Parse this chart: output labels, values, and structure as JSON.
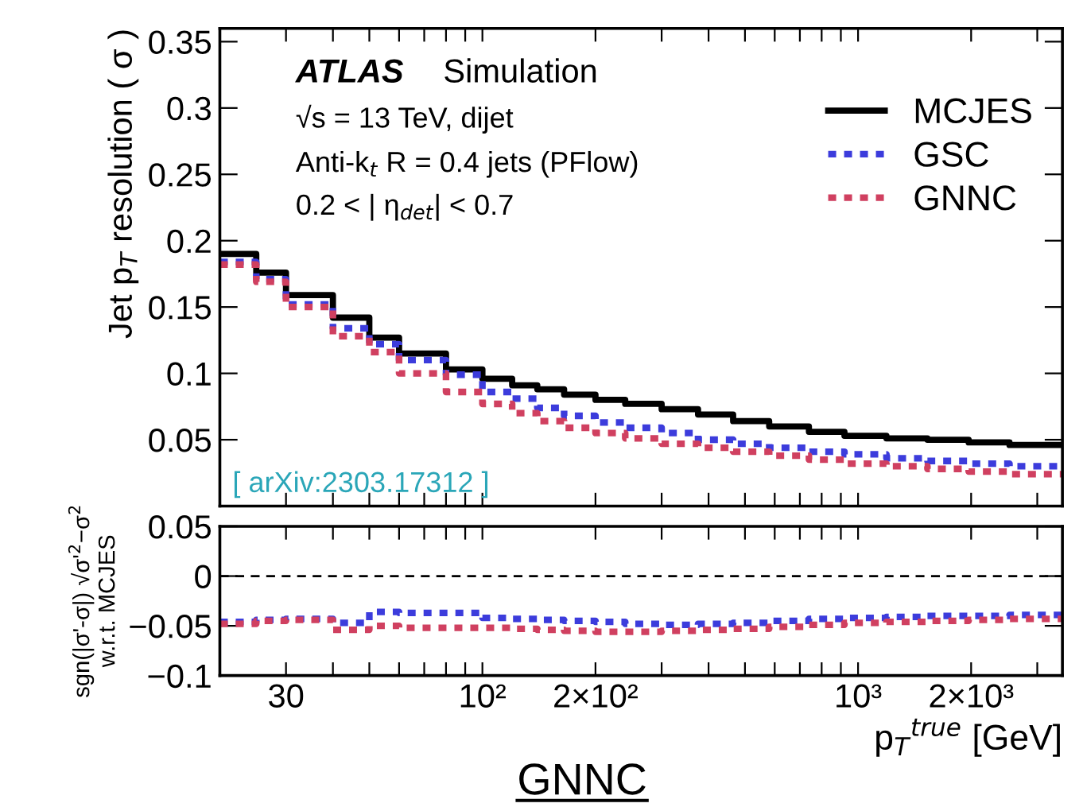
{
  "chart_data": [
    {
      "type": "step",
      "ylabel": "Jet p$_{T}$ resolution ( σ )",
      "x": [
        20,
        25,
        30,
        40,
        50,
        60,
        80,
        100,
        120,
        140,
        165,
        200,
        240,
        300,
        375,
        465,
        580,
        740,
        920,
        1190,
        1530,
        1970,
        2530,
        3500
      ],
      "series": [
        {
          "name": "MCJES",
          "color": "#000000",
          "line_style": "solid",
          "values": [
            0.19,
            0.176,
            0.159,
            0.142,
            0.127,
            0.115,
            0.103,
            0.096,
            0.091,
            0.088,
            0.084,
            0.08,
            0.077,
            0.073,
            0.069,
            0.064,
            0.06,
            0.056,
            0.053,
            0.051,
            0.05,
            0.048,
            0.046,
            0.046
          ]
        },
        {
          "name": "GSC",
          "color": "#3c3cdc",
          "line_style": "dotted",
          "values": [
            0.184,
            0.171,
            0.152,
            0.134,
            0.122,
            0.11,
            0.099,
            0.086,
            0.081,
            0.074,
            0.068,
            0.063,
            0.059,
            0.055,
            0.05,
            0.047,
            0.044,
            0.041,
            0.039,
            0.036,
            0.034,
            0.032,
            0.03,
            0.03
          ]
        },
        {
          "name": "GNNC",
          "color": "#d04060",
          "line_style": "dotted",
          "values": [
            0.182,
            0.169,
            0.15,
            0.128,
            0.116,
            0.1,
            0.086,
            0.077,
            0.07,
            0.064,
            0.059,
            0.055,
            0.051,
            0.047,
            0.044,
            0.041,
            0.038,
            0.035,
            0.032,
            0.03,
            0.028,
            0.026,
            0.024,
            0.024
          ]
        }
      ],
      "log": "x",
      "xlim": [
        20,
        3500
      ],
      "ylim": [
        0,
        0.36
      ],
      "xticks": [
        {
          "value": 20,
          "label": null
        },
        {
          "value": 30,
          "label": null
        },
        {
          "value": 40,
          "label": null
        },
        {
          "value": 50,
          "label": null
        },
        {
          "value": 60,
          "label": null
        },
        {
          "value": 70,
          "label": null
        },
        {
          "value": 80,
          "label": null
        },
        {
          "value": 90,
          "label": null
        },
        {
          "value": 100,
          "label": null
        },
        {
          "value": 200,
          "label": null
        },
        {
          "value": 300,
          "label": null
        },
        {
          "value": 400,
          "label": null
        },
        {
          "value": 500,
          "label": null
        },
        {
          "value": 600,
          "label": null
        },
        {
          "value": 700,
          "label": null
        },
        {
          "value": 800,
          "label": null
        },
        {
          "value": 900,
          "label": null
        },
        {
          "value": 1000,
          "label": null
        },
        {
          "value": 2000,
          "label": null
        },
        {
          "value": 3000,
          "label": null
        }
      ],
      "yticks": [
        0.05,
        0.1,
        0.15,
        0.2,
        0.25,
        0.3,
        0.35
      ],
      "tick_labels": "y",
      "legend": "top right",
      "annotations": [
        "ATLAS",
        "Simulation",
        "√s = 13 TeV, dijet",
        "Anti-k$_{t}$ R = 0.4 jets (PFlow)",
        "0.2 < | η$_{det}$| < 0.7",
        "[ arXiv:2303.17312 ]"
      ]
    },
    {
      "type": "step",
      "ylabel": "sgn(|σ'-σ|) √σ'$^{2}$−σ$^{2}$\nw.r.t. MCJES",
      "xlabel": "p$_{T}$$^{true}$ [GeV]",
      "x": [
        20,
        25,
        30,
        40,
        50,
        60,
        80,
        100,
        120,
        140,
        165,
        200,
        240,
        300,
        375,
        465,
        580,
        740,
        920,
        1190,
        1530,
        1970,
        2530,
        3500
      ],
      "series": [
        {
          "color": "#3c3cdc",
          "line_style": "dotted",
          "values": [
            -0.046,
            -0.044,
            -0.043,
            -0.047,
            -0.036,
            -0.037,
            -0.037,
            -0.042,
            -0.043,
            -0.044,
            -0.045,
            -0.046,
            -0.048,
            -0.049,
            -0.048,
            -0.047,
            -0.045,
            -0.043,
            -0.042,
            -0.041,
            -0.04,
            -0.04,
            -0.039,
            -0.039
          ]
        },
        {
          "color": "#d04060",
          "line_style": "dotted",
          "values": [
            -0.048,
            -0.045,
            -0.044,
            -0.054,
            -0.05,
            -0.052,
            -0.052,
            -0.052,
            -0.053,
            -0.054,
            -0.055,
            -0.056,
            -0.056,
            -0.055,
            -0.054,
            -0.053,
            -0.051,
            -0.049,
            -0.047,
            -0.046,
            -0.045,
            -0.044,
            -0.043,
            -0.043
          ]
        }
      ],
      "log": "x",
      "xlim": [
        20,
        3500
      ],
      "ylim": [
        -0.1,
        0.05
      ],
      "xticks": [
        {
          "value": 20,
          "label": null
        },
        {
          "value": 30,
          "label": "30"
        },
        {
          "value": 40,
          "label": null
        },
        {
          "value": 50,
          "label": null
        },
        {
          "value": 60,
          "label": null
        },
        {
          "value": 70,
          "label": null
        },
        {
          "value": 80,
          "label": null
        },
        {
          "value": 90,
          "label": null
        },
        {
          "value": 100,
          "label": "10²"
        },
        {
          "value": 200,
          "label": "2×10²"
        },
        {
          "value": 300,
          "label": null
        },
        {
          "value": 400,
          "label": null
        },
        {
          "value": 500,
          "label": null
        },
        {
          "value": 600,
          "label": null
        },
        {
          "value": 700,
          "label": null
        },
        {
          "value": 800,
          "label": null
        },
        {
          "value": 900,
          "label": null
        },
        {
          "value": 1000,
          "label": "10³"
        },
        {
          "value": 2000,
          "label": "2×10³"
        },
        {
          "value": 3000,
          "label": null
        }
      ],
      "yticks": [
        {
          "value": -0.1,
          "label": "−0.1"
        },
        {
          "value": -0.05,
          "label": "−0.05"
        },
        0,
        0.05
      ],
      "ref_lines": [
        {
          "axis": "y",
          "value": 0,
          "color": "#000000",
          "line_style": "dashed"
        }
      ],
      "annotations": [
        "GNNC"
      ]
    }
  ]
}
